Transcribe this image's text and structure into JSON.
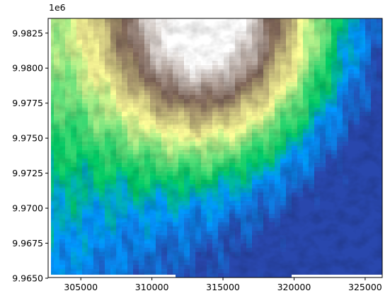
{
  "chart_data": {
    "type": "heatmap",
    "title": "",
    "xlabel": "",
    "ylabel": "",
    "y_offset_label": "1e6",
    "xlim": [
      302700,
      326200
    ],
    "ylim": [
      9.96505,
      9.98355
    ],
    "x_ticks": [
      {
        "value": 305000,
        "label": "305000"
      },
      {
        "value": 310000,
        "label": "310000"
      },
      {
        "value": 315000,
        "label": "315000"
      },
      {
        "value": 320000,
        "label": "320000"
      },
      {
        "value": 325000,
        "label": "325000"
      }
    ],
    "y_ticks": [
      {
        "value": 9.9825,
        "label": "9.9825"
      },
      {
        "value": 9.98,
        "label": "9.9800"
      },
      {
        "value": 9.9775,
        "label": "9.9775"
      },
      {
        "value": 9.975,
        "label": "9.9750"
      },
      {
        "value": 9.9725,
        "label": "9.9725"
      },
      {
        "value": 9.97,
        "label": "9.9700"
      },
      {
        "value": 9.9675,
        "label": "9.9675"
      },
      {
        "value": 9.965,
        "label": "9.9650"
      }
    ],
    "colormap": "terrain",
    "colormap_stops": [
      "#333399",
      "#0099ff",
      "#00cc66",
      "#ffff99",
      "#806659",
      "#ffffff"
    ],
    "grid": false,
    "summit": {
      "x": 314000,
      "y": 9.9832
    },
    "description_values": {
      "elevation_relative_min": 0.0,
      "elevation_relative_max": 1.0
    }
  }
}
